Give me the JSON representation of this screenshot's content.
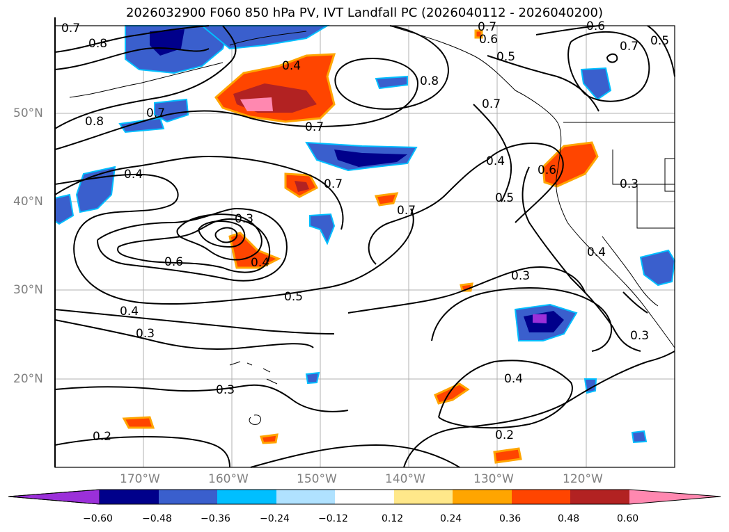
{
  "title": "2026032900 F060 850 hPa PV, IVT Landfall PC (2026040112 - 2026040200)",
  "lat_labels": [
    "50°N",
    "40°N",
    "30°N",
    "20°N"
  ],
  "lon_labels": [
    "170°W",
    "160°W",
    "150°W",
    "140°W",
    "130°W",
    "120°W"
  ],
  "contour_labels": [
    "0.7",
    "0.8",
    "0.8",
    "0.7",
    "0.4",
    "0.8",
    "0.7",
    "0.6",
    "0.5",
    "0.6",
    "0.7",
    "0.5",
    "0.7",
    "0.4",
    "0.7",
    "0.3",
    "0.6",
    "0.4",
    "0.7",
    "0.3",
    "0.4",
    "0.5",
    "0.5",
    "0.6",
    "0.4",
    "0.3",
    "0.3",
    "0.3",
    "0.4",
    "0.4",
    "0.2",
    "0.2",
    "0.3",
    "0.7"
  ],
  "colorbar": {
    "tick_labels": [
      "−0.60",
      "−0.48",
      "−0.36",
      "−0.24",
      "−0.12",
      "0.12",
      "0.24",
      "0.36",
      "0.48",
      "0.60"
    ],
    "colors": [
      "#9b30d9",
      "#00008b",
      "#3a5fcd",
      "#00bfff",
      "#b0e2ff",
      "#ffffff",
      "#ffe88a",
      "#ffa500",
      "#ff4500",
      "#b22222",
      "#ff88b0"
    ]
  }
}
